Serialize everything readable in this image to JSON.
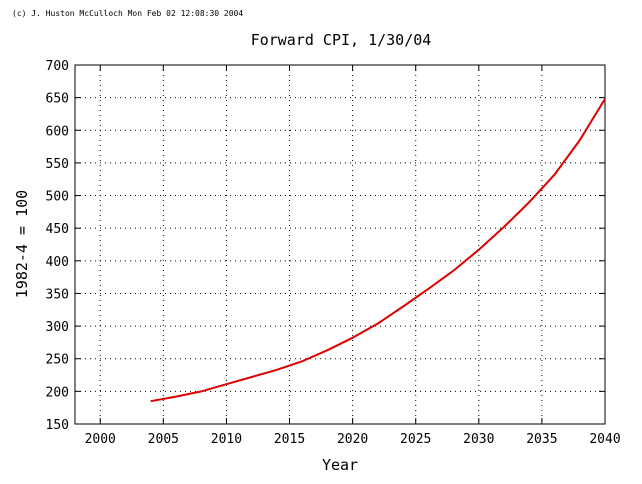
{
  "credit": "(c) J. Huston McCulloch Mon Feb 02 12:08:30 2004",
  "chart_data": {
    "type": "line",
    "title": "Forward CPI, 1/30/04",
    "xlabel": "Year",
    "ylabel": "1982-4 = 100",
    "xlim": [
      1998,
      2040
    ],
    "ylim": [
      150,
      700
    ],
    "xticks": [
      2000,
      2005,
      2010,
      2015,
      2020,
      2025,
      2030,
      2035,
      2040
    ],
    "yticks": [
      150,
      200,
      250,
      300,
      350,
      400,
      450,
      500,
      550,
      600,
      650,
      700
    ],
    "grid": true,
    "series": [
      {
        "color": "#dd0000",
        "x": [
          2004,
          2006,
          2008,
          2010,
          2012,
          2014,
          2016,
          2018,
          2020,
          2022,
          2024,
          2026,
          2028,
          2030,
          2032,
          2034,
          2036,
          2038,
          2040
        ],
        "y": [
          185,
          192,
          200,
          211,
          222,
          233,
          246,
          263,
          282,
          304,
          330,
          357,
          385,
          417,
          452,
          490,
          532,
          585,
          648
        ]
      }
    ]
  }
}
